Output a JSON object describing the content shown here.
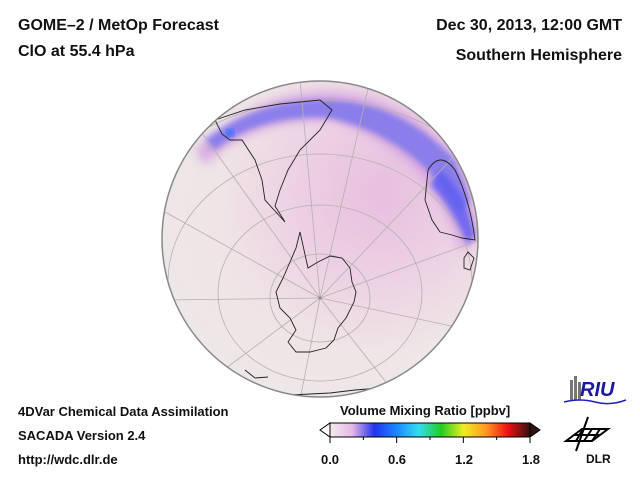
{
  "header": {
    "title": "GOME–2 / MetOp Forecast",
    "subtitle": "ClO at 55.4 hPa",
    "datetime": "Dec 30, 2013, 12:00 GMT",
    "region": "Southern Hemisphere"
  },
  "footer": {
    "line1": "4DVar Chemical Data Assimilation",
    "line2": "SACADA Version 2.4",
    "line3": "http://wdc.dlr.de"
  },
  "colorbar": {
    "title": "Volume Mixing Ratio [ppbv]",
    "ticks": [
      "0.0",
      "0.6",
      "1.2",
      "1.8"
    ],
    "range": [
      0.0,
      1.8
    ],
    "colors": [
      "#f4ecec",
      "#e6b8e6",
      "#2233ee",
      "#1a88ff",
      "#33ddee",
      "#22cc22",
      "#eeee22",
      "#ff9922",
      "#ee1111",
      "#331111"
    ]
  },
  "logos": {
    "riu": "RIU",
    "dlr": "DLR"
  },
  "map": {
    "projection": "orthographic",
    "hemisphere": "south",
    "ocean_color": "#ece6e6",
    "field_colors": {
      "low": "#efdfe6",
      "mid": "#d8a8e0",
      "high": "#6a6af0"
    }
  }
}
